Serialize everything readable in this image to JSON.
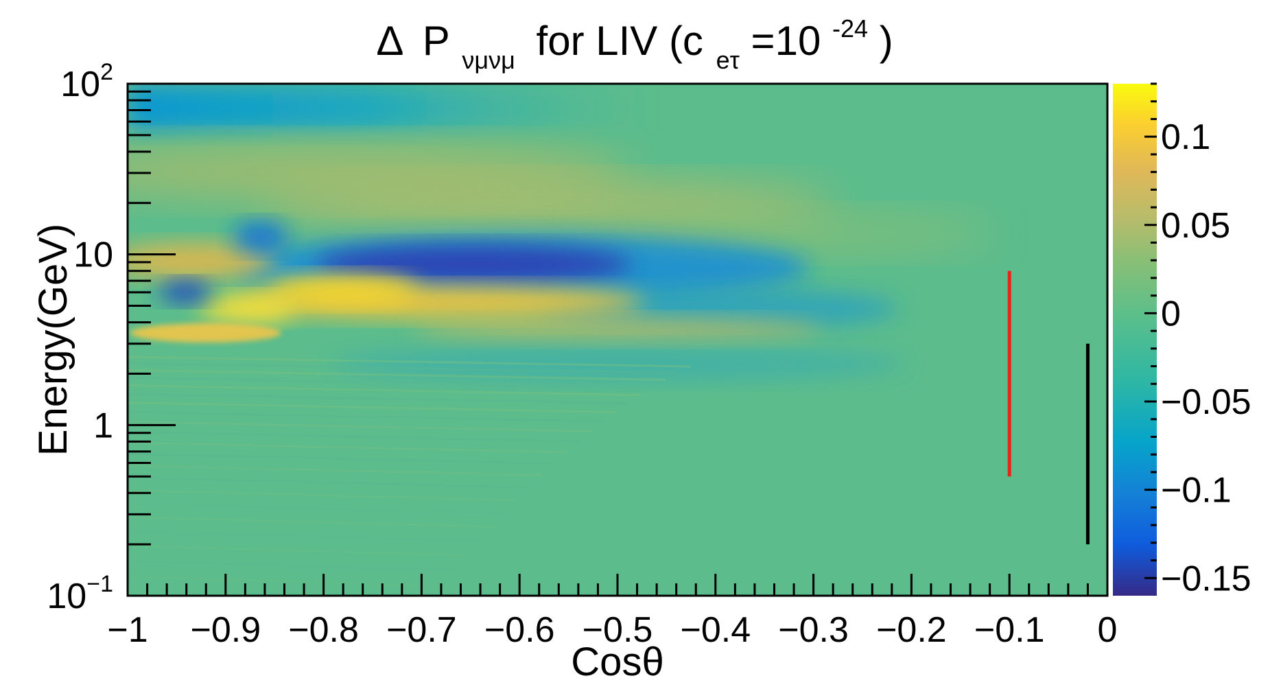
{
  "chart_data": {
    "type": "heatmap",
    "title": {
      "delta": "Δ",
      "p": "P",
      "p_sub": "νμνμ",
      "mid": "for LIV (c",
      "c_sub": "eτ",
      "eq": "=10",
      "exp": "-24",
      "close": ")"
    },
    "xlabel": "Cosθ",
    "ylabel": "Energy(GeV)",
    "xlim": [
      -1,
      0
    ],
    "ylim": [
      0.1,
      100
    ],
    "y_scale": "log",
    "zlim": [
      -0.16,
      0.13
    ],
    "x_ticks": [
      {
        "value": -1,
        "label": "−1"
      },
      {
        "value": -0.9,
        "label": "−0.9"
      },
      {
        "value": -0.8,
        "label": "−0.8"
      },
      {
        "value": -0.7,
        "label": "−0.7"
      },
      {
        "value": -0.6,
        "label": "−0.6"
      },
      {
        "value": -0.5,
        "label": "−0.5"
      },
      {
        "value": -0.4,
        "label": "−0.4"
      },
      {
        "value": -0.3,
        "label": "−0.3"
      },
      {
        "value": -0.2,
        "label": "−0.2"
      },
      {
        "value": -0.1,
        "label": "−0.1"
      },
      {
        "value": 0,
        "label": "0"
      }
    ],
    "y_ticks": [
      {
        "value": 0.1,
        "base": "10",
        "exp": "−1"
      },
      {
        "value": 1,
        "base": "1",
        "exp": ""
      },
      {
        "value": 10,
        "base": "10",
        "exp": ""
      },
      {
        "value": 100,
        "base": "10",
        "exp": "2"
      }
    ],
    "z_ticks": [
      {
        "value": 0.1,
        "label": "0.1"
      },
      {
        "value": 0.05,
        "label": "0.05"
      },
      {
        "value": 0,
        "label": "0"
      },
      {
        "value": -0.05,
        "label": "−0.05"
      },
      {
        "value": -0.1,
        "label": "−0.1"
      },
      {
        "value": -0.15,
        "label": "−0.15"
      }
    ],
    "features": [
      {
        "description": "deep minimum",
        "cos_theta": [
          -0.72,
          -0.5
        ],
        "energy": 8.5,
        "value": -0.15
      },
      {
        "description": "positive ridge",
        "cos_theta": [
          -0.97,
          -0.4
        ],
        "energy": 6.0,
        "value": 0.09
      },
      {
        "description": "secondary positive band",
        "cos_theta": [
          -0.95,
          -0.2
        ],
        "energy": 25,
        "value": 0.03
      }
    ],
    "markers": [
      {
        "name": "red-line",
        "cos_theta": -0.1,
        "energy_range": [
          0.5,
          8.0
        ],
        "color": "#e8231a"
      },
      {
        "name": "black-line",
        "cos_theta": -0.02,
        "energy_range": [
          0.2,
          3.0
        ],
        "color": "#000000"
      }
    ],
    "colormap": [
      "#352a87",
      "#0f5cdd",
      "#1481d6",
      "#06a4ca",
      "#2eb7a4",
      "#5cbf8a",
      "#87bf77",
      "#b9bc6a",
      "#e0b858",
      "#fbcf30",
      "#f9fb0e"
    ],
    "grid": false,
    "legend": "colorbar-right"
  }
}
